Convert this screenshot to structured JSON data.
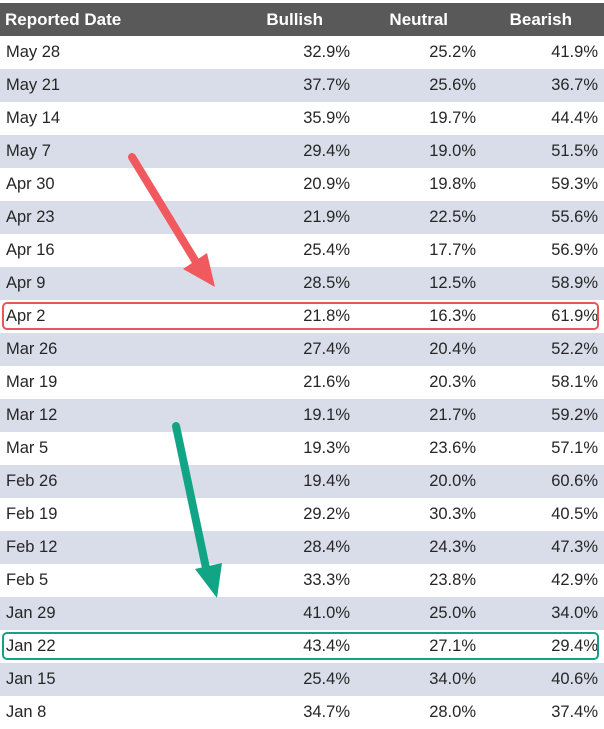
{
  "table": {
    "headers": {
      "date": "Reported Date",
      "bullish": "Bullish",
      "neutral": "Neutral",
      "bearish": "Bearish"
    },
    "rows": [
      {
        "date": "May 28",
        "bullish": "32.9%",
        "neutral": "25.2%",
        "bearish": "41.9%"
      },
      {
        "date": "May 21",
        "bullish": "37.7%",
        "neutral": "25.6%",
        "bearish": "36.7%"
      },
      {
        "date": "May 14",
        "bullish": "35.9%",
        "neutral": "19.7%",
        "bearish": "44.4%"
      },
      {
        "date": "May 7",
        "bullish": "29.4%",
        "neutral": "19.0%",
        "bearish": "51.5%"
      },
      {
        "date": "Apr 30",
        "bullish": "20.9%",
        "neutral": "19.8%",
        "bearish": "59.3%"
      },
      {
        "date": "Apr 23",
        "bullish": "21.9%",
        "neutral": "22.5%",
        "bearish": "55.6%"
      },
      {
        "date": "Apr 16",
        "bullish": "25.4%",
        "neutral": "17.7%",
        "bearish": "56.9%"
      },
      {
        "date": "Apr 9",
        "bullish": "28.5%",
        "neutral": "12.5%",
        "bearish": "58.9%"
      },
      {
        "date": "Apr 2",
        "bullish": "21.8%",
        "neutral": "16.3%",
        "bearish": "61.9%"
      },
      {
        "date": "Mar 26",
        "bullish": "27.4%",
        "neutral": "20.4%",
        "bearish": "52.2%"
      },
      {
        "date": "Mar 19",
        "bullish": "21.6%",
        "neutral": "20.3%",
        "bearish": "58.1%"
      },
      {
        "date": "Mar 12",
        "bullish": "19.1%",
        "neutral": "21.7%",
        "bearish": "59.2%"
      },
      {
        "date": "Mar 5",
        "bullish": "19.3%",
        "neutral": "23.6%",
        "bearish": "57.1%"
      },
      {
        "date": "Feb 26",
        "bullish": "19.4%",
        "neutral": "20.0%",
        "bearish": "60.6%"
      },
      {
        "date": "Feb 19",
        "bullish": "29.2%",
        "neutral": "30.3%",
        "bearish": "40.5%"
      },
      {
        "date": "Feb 12",
        "bullish": "28.4%",
        "neutral": "24.3%",
        "bearish": "47.3%"
      },
      {
        "date": "Feb 5",
        "bullish": "33.3%",
        "neutral": "23.8%",
        "bearish": "42.9%"
      },
      {
        "date": "Jan 29",
        "bullish": "41.0%",
        "neutral": "25.0%",
        "bearish": "34.0%"
      },
      {
        "date": "Jan 22",
        "bullish": "43.4%",
        "neutral": "27.1%",
        "bearish": "29.4%"
      },
      {
        "date": "Jan 15",
        "bullish": "25.4%",
        "neutral": "34.0%",
        "bearish": "40.6%"
      },
      {
        "date": "Jan 8",
        "bullish": "34.7%",
        "neutral": "28.0%",
        "bearish": "37.4%"
      }
    ]
  },
  "annotations": {
    "highlight_red_row": "Apr 2",
    "highlight_green_row": "Jan 22",
    "red_color": "#e8555a",
    "green_color": "#17a086"
  },
  "colors": {
    "header_bg": "#595959",
    "header_text": "#ffffff",
    "shaded_row": "#d9dde9",
    "plain_row": "#ffffff",
    "cell_text": "#262626"
  }
}
